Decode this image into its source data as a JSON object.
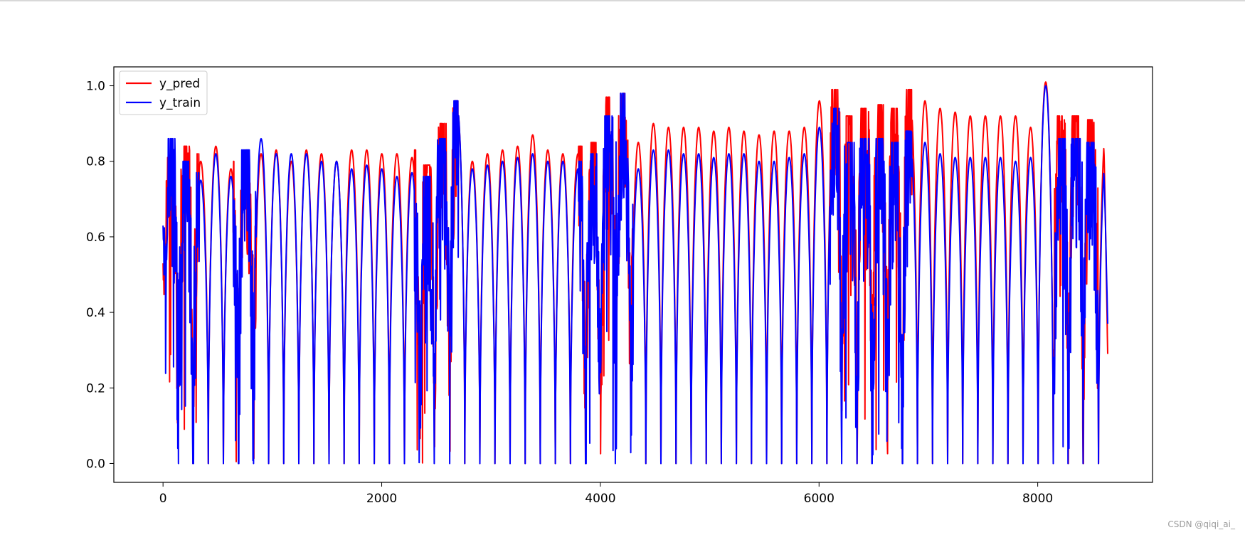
{
  "watermark": "CSDN @qiqi_ai_",
  "chart_data": {
    "type": "line",
    "title": "",
    "xlabel": "",
    "ylabel": "",
    "xlim": [
      -450,
      9050
    ],
    "ylim": [
      -0.05,
      1.05
    ],
    "x_ticks": [
      0,
      2000,
      4000,
      6000,
      8000
    ],
    "x_tick_labels": [
      "0",
      "2000",
      "4000",
      "6000",
      "8000"
    ],
    "y_ticks": [
      0.0,
      0.2,
      0.4,
      0.6,
      0.8,
      1.0
    ],
    "y_tick_labels": [
      "0.0",
      "0.2",
      "0.4",
      "0.6",
      "0.8",
      "1.0"
    ],
    "grid": false,
    "legend_position": "top-left",
    "x_range": [
      0,
      8640
    ],
    "period": 138,
    "series": [
      {
        "name": "y_pred",
        "color": "#ff0000",
        "start": 0.53,
        "end": 0.29,
        "cycle_peaks": [
          0.79,
          0.82,
          0.8,
          0.84,
          0.78,
          0.8,
          0.82,
          0.83,
          0.8,
          0.83,
          0.82,
          0.8,
          0.83,
          0.83,
          0.82,
          0.82,
          0.81,
          0.77,
          0.88,
          0.94,
          0.8,
          0.82,
          0.83,
          0.84,
          0.87,
          0.83,
          0.82,
          0.82,
          0.83,
          0.95,
          0.96,
          0.85,
          0.9,
          0.89,
          0.89,
          0.89,
          0.88,
          0.89,
          0.88,
          0.87,
          0.88,
          0.88,
          0.89,
          0.96,
          0.97,
          0.9,
          0.92,
          0.93,
          0.92,
          0.97,
          0.96,
          0.94,
          0.93,
          0.92,
          0.92,
          0.92,
          0.92,
          0.89,
          1.01,
          0.9,
          0.9,
          0.89,
          0.89
        ]
      },
      {
        "name": "y_train",
        "color": "#0000ff",
        "start": 0.63,
        "end": 0.37,
        "cycle_peaks": [
          0.84,
          0.78,
          0.75,
          0.82,
          0.76,
          0.81,
          0.86,
          0.82,
          0.82,
          0.82,
          0.8,
          0.8,
          0.78,
          0.79,
          0.78,
          0.76,
          0.77,
          0.74,
          0.84,
          0.94,
          0.78,
          0.79,
          0.8,
          0.81,
          0.82,
          0.8,
          0.8,
          0.78,
          0.8,
          0.9,
          0.96,
          0.78,
          0.83,
          0.83,
          0.82,
          0.82,
          0.81,
          0.82,
          0.82,
          0.8,
          0.8,
          0.81,
          0.82,
          0.89,
          0.92,
          0.83,
          0.84,
          0.84,
          0.83,
          0.86,
          0.85,
          0.82,
          0.81,
          0.81,
          0.81,
          0.81,
          0.8,
          0.81,
          1.0,
          0.84,
          0.84,
          0.83,
          0.82
        ]
      }
    ],
    "noisy_windows": [
      [
        0,
        330
      ],
      [
        640,
        850
      ],
      [
        2300,
        2700
      ],
      [
        3800,
        4300
      ],
      [
        6100,
        6850
      ],
      [
        8150,
        8550
      ]
    ]
  }
}
